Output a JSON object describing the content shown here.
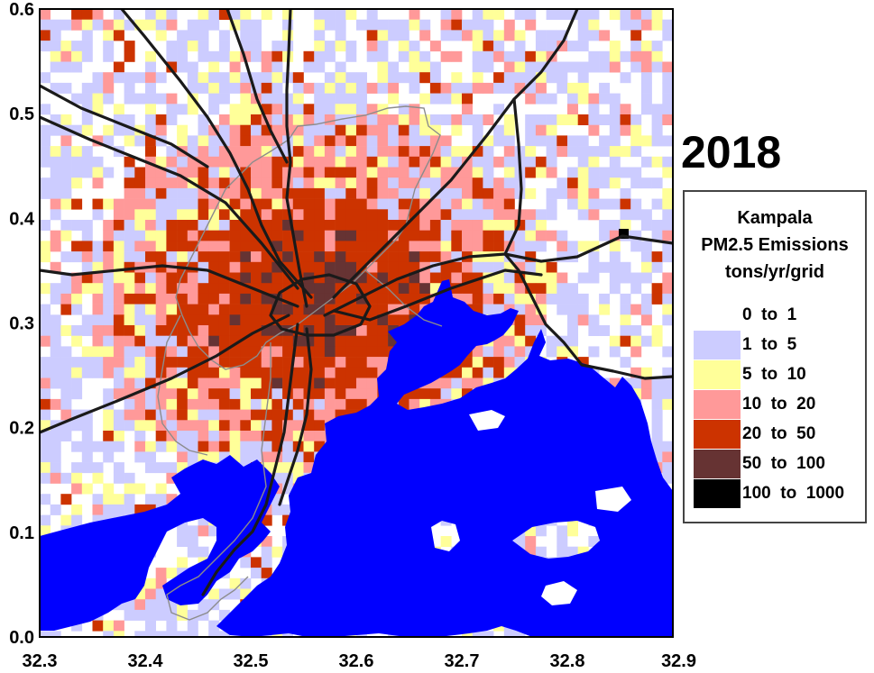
{
  "map": {
    "year": "2018",
    "x_axis": {
      "min": 32.3,
      "max": 32.9,
      "ticks": [
        "32.3",
        "32.4",
        "32.5",
        "32.6",
        "32.7",
        "32.8",
        "32.9"
      ]
    },
    "y_axis": {
      "min": 0.0,
      "max": 0.6,
      "ticks": [
        "0.0",
        "0.1",
        "0.2",
        "0.3",
        "0.4",
        "0.5",
        "0.6"
      ]
    },
    "colors": {
      "water": "#0000ff",
      "road": "#1a1a1a",
      "boundary": "#8c8c8c",
      "frame": "#000000"
    }
  },
  "legend": {
    "title_lines": [
      "Kampala",
      "PM2.5 Emissions",
      "tons/yr/grid"
    ],
    "classes": [
      {
        "label": "0  to  1",
        "color": "#ffffff"
      },
      {
        "label": "1  to  5",
        "color": "#ccccff"
      },
      {
        "label": "5  to  10",
        "color": "#ffff99"
      },
      {
        "label": "10  to  20",
        "color": "#ff9999"
      },
      {
        "label": "20  to  50",
        "color": "#cc3300"
      },
      {
        "label": "50  to  100",
        "color": "#663333"
      },
      {
        "label": "100  to  1000",
        "color": "#000000"
      }
    ]
  }
}
